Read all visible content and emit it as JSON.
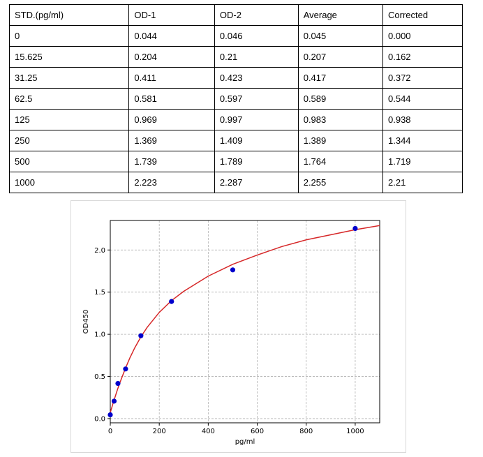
{
  "table": {
    "headers": [
      "STD.(pg/ml)",
      "OD-1",
      "OD-2",
      "Average",
      "Corrected"
    ],
    "rows": [
      [
        "0",
        "0.044",
        "0.046",
        "0.045",
        "0.000"
      ],
      [
        "15.625",
        "0.204",
        "0.21",
        "0.207",
        "0.162"
      ],
      [
        "31.25",
        "0.411",
        "0.423",
        "0.417",
        "0.372"
      ],
      [
        "62.5",
        "0.581",
        "0.597",
        "0.589",
        "0.544"
      ],
      [
        "125",
        "0.969",
        "0.997",
        "0.983",
        "0.938"
      ],
      [
        "250",
        "1.369",
        "1.409",
        "1.389",
        "1.344"
      ],
      [
        "500",
        "1.739",
        "1.789",
        "1.764",
        "1.719"
      ],
      [
        "1000",
        "2.223",
        "2.287",
        "2.255",
        "2.21"
      ]
    ]
  },
  "chart_data": {
    "type": "scatter",
    "title": "",
    "xlabel": "pg/ml",
    "ylabel": "OD450",
    "xlim": [
      0,
      1100
    ],
    "ylim": [
      -0.05,
      2.35
    ],
    "xticks": [
      0,
      200,
      400,
      600,
      800,
      1000
    ],
    "yticks": [
      0.0,
      0.5,
      1.0,
      1.5,
      2.0
    ],
    "xtick_labels": [
      "0",
      "200",
      "400",
      "600",
      "800",
      "1000"
    ],
    "ytick_labels": [
      "0.0",
      "0.5",
      "1.0",
      "1.5",
      "2.0"
    ],
    "grid": true,
    "series": [
      {
        "kind": "points",
        "color": "#0000cc",
        "x": [
          0,
          15.625,
          31.25,
          62.5,
          125,
          250,
          500,
          1000
        ],
        "y": [
          0.045,
          0.207,
          0.417,
          0.589,
          0.983,
          1.389,
          1.764,
          2.255
        ]
      },
      {
        "kind": "fit-curve",
        "color": "#d62728",
        "x": [
          0,
          10,
          20,
          30,
          45,
          62.5,
          80,
          100,
          125,
          150,
          200,
          250,
          300,
          400,
          500,
          600,
          700,
          800,
          900,
          1000,
          1100
        ],
        "y": [
          0.07,
          0.17,
          0.26,
          0.35,
          0.47,
          0.6,
          0.72,
          0.84,
          0.97,
          1.08,
          1.26,
          1.4,
          1.51,
          1.69,
          1.83,
          1.94,
          2.04,
          2.12,
          2.18,
          2.24,
          2.29
        ]
      }
    ]
  }
}
